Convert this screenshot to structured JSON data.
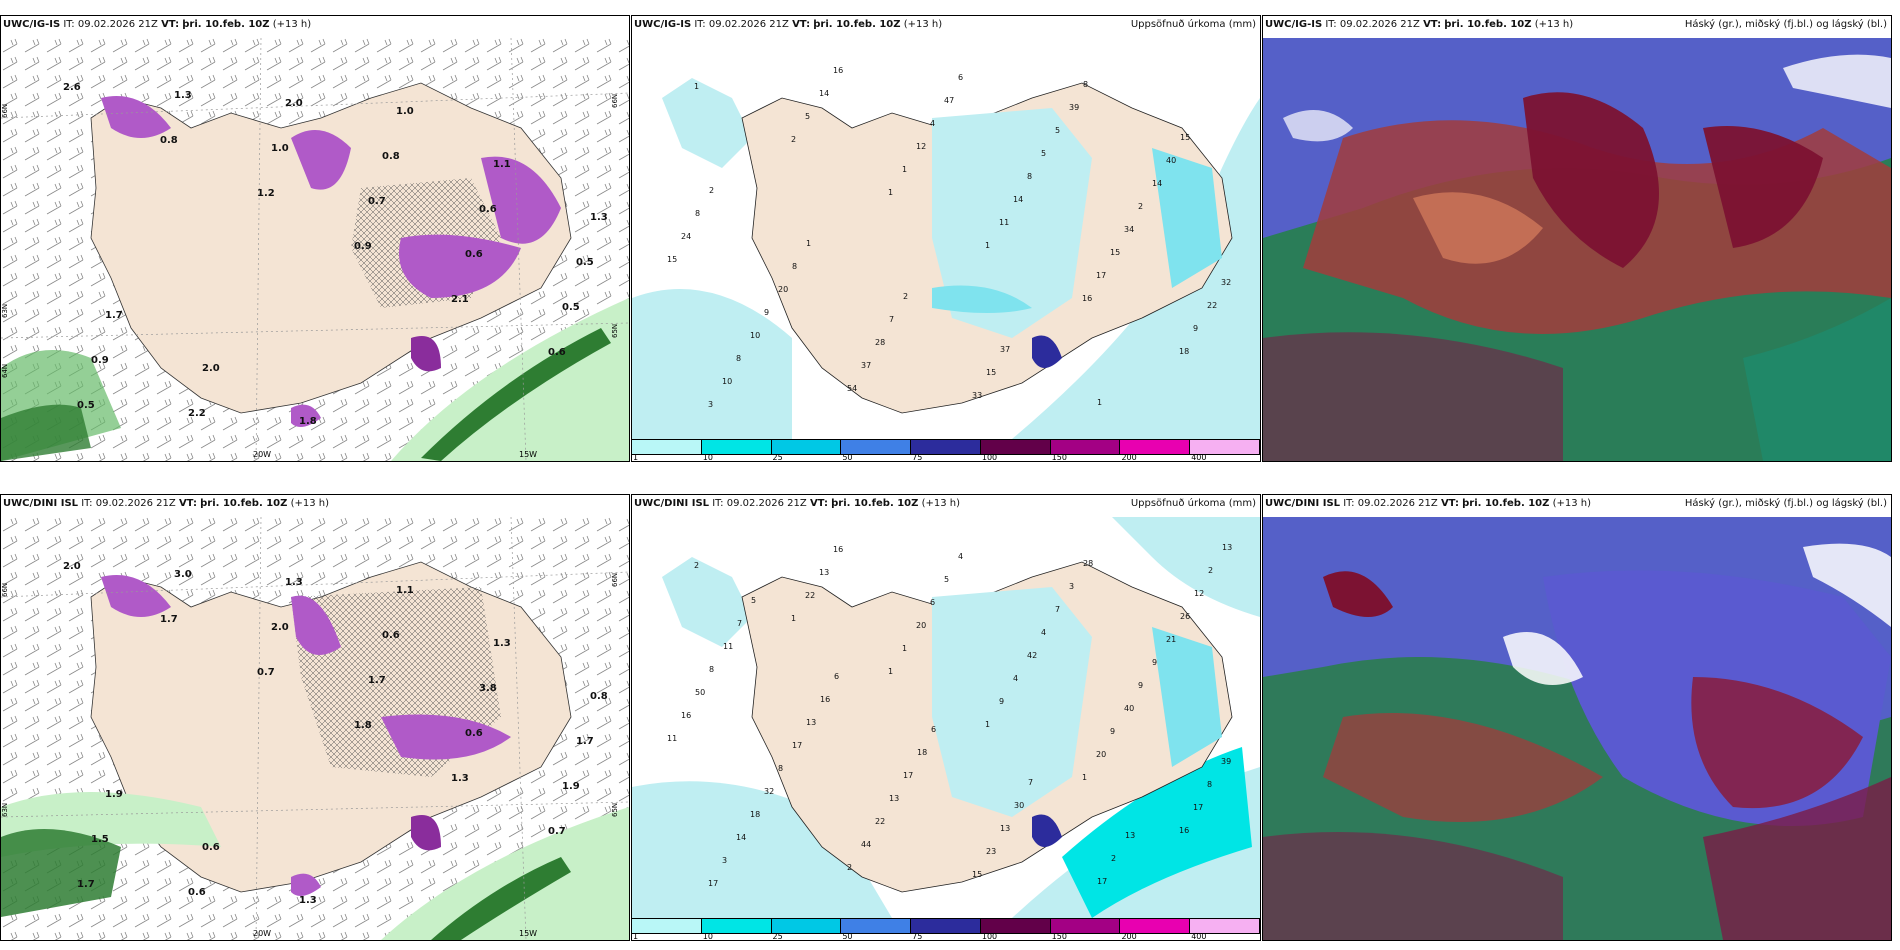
{
  "panels": [
    {
      "model": "UWC/IG-IS",
      "it_label": "IT:",
      "it": "09.02.2026 21Z",
      "vt_label": "VT:",
      "vt": "þri. 10.feb. 10Z",
      "lead": "(+13 h)",
      "right": "",
      "lat_labels": [
        "66N",
        "64N",
        "63N",
        "65N",
        "66N"
      ],
      "lon_labels": [
        "20W",
        "15W"
      ],
      "values": [
        "2.6",
        "0.8",
        "1.2",
        "0.9",
        "2.1",
        "0.6",
        "0.5",
        "1.3",
        "1.0",
        "0.7",
        "0.6",
        "0.5",
        "0.9",
        "2.2",
        "2.0",
        "0.8",
        "0.6",
        "0.5",
        "1.7",
        "2.0",
        "1.8",
        "1.0",
        "1.1",
        "1.3"
      ]
    },
    {
      "model": "UWC/IG-IS",
      "it_label": "IT:",
      "it": "09.02.2026 21Z",
      "vt_label": "VT:",
      "vt": "þri. 10.feb. 10Z",
      "lead": "(+13 h)",
      "right": "Uppsöfnuð úrkoma (mm)",
      "values": [
        "1",
        "2",
        "1",
        "1",
        "16",
        "18",
        "3",
        "5",
        "1",
        "11",
        "17",
        "9",
        "10",
        "14",
        "12",
        "14",
        "15",
        "22",
        "8",
        "16",
        "4",
        "8",
        "34",
        "32",
        "10",
        "54",
        "47",
        "5",
        "2",
        "15",
        "9",
        "37",
        "6",
        "5",
        "14",
        "24",
        "20",
        "28",
        "33",
        "39",
        "40",
        "8",
        "8",
        "7",
        "15",
        "8",
        "15",
        "2",
        "1",
        "2",
        "37",
        "1"
      ]
    },
    {
      "model": "UWC/IG-IS",
      "it_label": "IT:",
      "it": "09.02.2026 21Z",
      "vt_label": "VT:",
      "vt": "þri. 10.feb. 10Z",
      "lead": "(+13 h)",
      "right": "Háský (gr.), miðský (fj.bl.) og lágský (bl.)"
    },
    {
      "model": "UWC/DINI ISL",
      "it_label": "IT:",
      "it": "09.02.2026 21Z",
      "vt_label": "VT:",
      "vt": "þri. 10.feb. 10Z",
      "lead": "(+13 h)",
      "right": "",
      "lat_labels": [
        "66N",
        "63N",
        "65N",
        "66N"
      ],
      "lon_labels": [
        "20W",
        "15W"
      ],
      "values": [
        "2.0",
        "1.7",
        "0.7",
        "1.8",
        "1.3",
        "0.7",
        "1.7",
        "3.0",
        "2.0",
        "1.7",
        "0.6",
        "1.9",
        "1.5",
        "0.6",
        "1.3",
        "0.6",
        "3.8",
        "1.7",
        "1.9",
        "0.6",
        "1.3",
        "1.1",
        "1.3",
        "0.8"
      ]
    },
    {
      "model": "UWC/DINI ISL",
      "it_label": "IT:",
      "it": "09.02.2026 21Z",
      "vt_label": "VT:",
      "vt": "þri. 10.feb. 10Z",
      "lead": "(+13 h)",
      "right": "Uppsöfnuð úrkoma (mm)",
      "values": [
        "2",
        "1",
        "1",
        "1",
        "1",
        "16",
        "17",
        "22",
        "1",
        "9",
        "20",
        "17",
        "3",
        "13",
        "20",
        "4",
        "9",
        "8",
        "14",
        "16",
        "6",
        "42",
        "40",
        "39",
        "18",
        "2",
        "5",
        "4",
        "9",
        "11",
        "32",
        "44",
        "4",
        "7",
        "9",
        "16",
        "8",
        "22",
        "15",
        "3",
        "21",
        "50",
        "17",
        "13",
        "23",
        "28",
        "26",
        "8",
        "13",
        "17",
        "13",
        "17",
        "12",
        "11",
        "16",
        "18",
        "30",
        "2",
        "2",
        "7",
        "6",
        "6",
        "7",
        "13",
        "13",
        "5"
      ]
    },
    {
      "model": "UWC/DINI ISL",
      "it_label": "IT:",
      "it": "09.02.2026 21Z",
      "vt_label": "VT:",
      "vt": "þri. 10.feb. 10Z",
      "lead": "(+13 h)",
      "right": "Háský (gr.), miðský (fj.bl.) og lágský (bl.)"
    }
  ],
  "precip_scale": {
    "labels": [
      "1",
      "10",
      "25",
      "50",
      "75",
      "100",
      "150",
      "200",
      "400"
    ],
    "colors": [
      "#b9f7f7",
      "#00e5e5",
      "#00c8e5",
      "#3f80e6",
      "#2c2c9c",
      "#620049",
      "#a30084",
      "#e800b0",
      "#f6b0f2"
    ]
  },
  "colors": {
    "land": "#f4e4d4",
    "sea_precip": "#bfeef2",
    "snow_purple": "#b05ac8",
    "rain_green": "#2e7d3a",
    "cloud_high": "#1fa67a",
    "cloud_mid": "#4a55c8",
    "cloud_low": "#8c1f3c"
  }
}
